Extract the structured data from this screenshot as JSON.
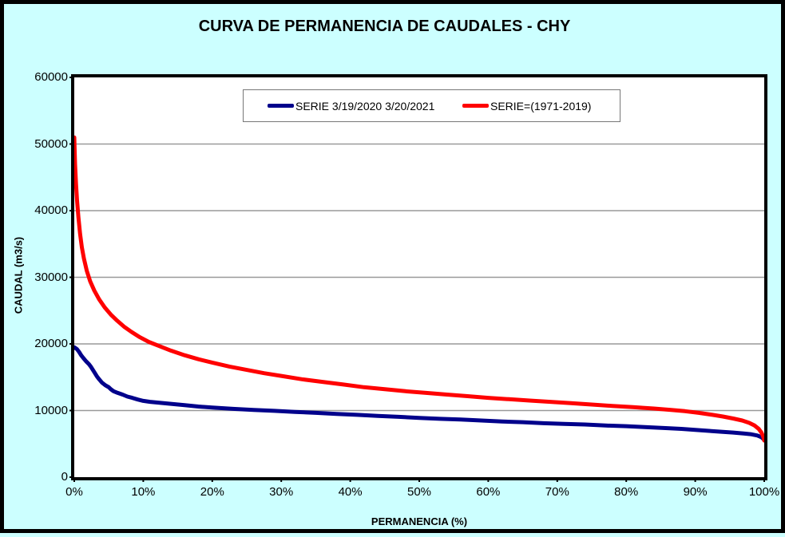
{
  "chart_data": {
    "type": "line",
    "title": "CURVA DE PERMANENCIA DE CAUDALES - CHY",
    "xlabel": "PERMANENCIA (%)",
    "ylabel": "CAUDAL (m3/s)",
    "xlim": [
      0,
      100
    ],
    "ylim": [
      0,
      60000
    ],
    "grid": "horizontal",
    "legend_position": "top-center-inside",
    "background_color": "#CCFFFF",
    "plot_background": "#FFFFFF",
    "gridline_color": "#999999",
    "axis_border_color": "#000000",
    "x_tick_labels": [
      "0%",
      "10%",
      "20%",
      "30%",
      "40%",
      "50%",
      "60%",
      "70%",
      "80%",
      "90%",
      "100%"
    ],
    "x_tick_values": [
      0,
      10,
      20,
      30,
      40,
      50,
      60,
      70,
      80,
      90,
      100
    ],
    "y_tick_labels": [
      "0",
      "10000",
      "20000",
      "30000",
      "40000",
      "50000",
      "60000"
    ],
    "y_tick_values": [
      0,
      10000,
      20000,
      30000,
      40000,
      50000,
      60000
    ],
    "series": [
      {
        "name": "SERIE 3/19/2020 3/20/2021",
        "color": "#00008B",
        "points": [
          [
            0,
            19500
          ],
          [
            0.4,
            19200
          ],
          [
            0.7,
            18800
          ],
          [
            1,
            18300
          ],
          [
            1.3,
            17900
          ],
          [
            1.7,
            17400
          ],
          [
            2.1,
            17000
          ],
          [
            2.4,
            16600
          ],
          [
            2.7,
            16100
          ],
          [
            3,
            15600
          ],
          [
            3.3,
            15100
          ],
          [
            3.6,
            14700
          ],
          [
            4,
            14200
          ],
          [
            4.5,
            13800
          ],
          [
            5,
            13500
          ],
          [
            5.3,
            13200
          ],
          [
            5.7,
            12900
          ],
          [
            6.3,
            12650
          ],
          [
            7,
            12400
          ],
          [
            7.7,
            12100
          ],
          [
            8.4,
            11900
          ],
          [
            9.2,
            11650
          ],
          [
            10,
            11450
          ],
          [
            11,
            11300
          ],
          [
            12.5,
            11150
          ],
          [
            14,
            11000
          ],
          [
            16,
            10800
          ],
          [
            18,
            10600
          ],
          [
            20,
            10450
          ],
          [
            23,
            10250
          ],
          [
            26,
            10100
          ],
          [
            29,
            9950
          ],
          [
            32,
            9800
          ],
          [
            35,
            9650
          ],
          [
            38,
            9500
          ],
          [
            41,
            9350
          ],
          [
            44,
            9200
          ],
          [
            47,
            9050
          ],
          [
            50,
            8900
          ],
          [
            53,
            8750
          ],
          [
            56,
            8650
          ],
          [
            59,
            8500
          ],
          [
            62,
            8350
          ],
          [
            65,
            8250
          ],
          [
            68,
            8100
          ],
          [
            71,
            8000
          ],
          [
            74,
            7900
          ],
          [
            77,
            7750
          ],
          [
            80,
            7650
          ],
          [
            83,
            7500
          ],
          [
            86,
            7350
          ],
          [
            88,
            7250
          ],
          [
            90,
            7100
          ],
          [
            92,
            6950
          ],
          [
            94,
            6800
          ],
          [
            95.5,
            6700
          ],
          [
            97,
            6550
          ],
          [
            98,
            6450
          ],
          [
            99,
            6250
          ],
          [
            99.6,
            6000
          ],
          [
            100,
            5600
          ]
        ]
      },
      {
        "name": "SERIE=(1971-2019)",
        "color": "#FF0000",
        "points": [
          [
            0,
            51000
          ],
          [
            0.12,
            47000
          ],
          [
            0.25,
            44000
          ],
          [
            0.4,
            41500
          ],
          [
            0.6,
            39000
          ],
          [
            0.85,
            36500
          ],
          [
            1.1,
            34500
          ],
          [
            1.4,
            32800
          ],
          [
            1.8,
            31000
          ],
          [
            2.3,
            29400
          ],
          [
            2.9,
            28000
          ],
          [
            3.6,
            26700
          ],
          [
            4.4,
            25500
          ],
          [
            5.3,
            24400
          ],
          [
            6.2,
            23500
          ],
          [
            7.2,
            22600
          ],
          [
            8.3,
            21800
          ],
          [
            9.5,
            21000
          ],
          [
            10.8,
            20300
          ],
          [
            12.5,
            19600
          ],
          [
            14,
            19000
          ],
          [
            16,
            18300
          ],
          [
            18,
            17700
          ],
          [
            20,
            17200
          ],
          [
            22.5,
            16600
          ],
          [
            25,
            16100
          ],
          [
            27.5,
            15600
          ],
          [
            30,
            15200
          ],
          [
            33,
            14700
          ],
          [
            36,
            14300
          ],
          [
            39,
            13900
          ],
          [
            42,
            13500
          ],
          [
            45,
            13200
          ],
          [
            48,
            12900
          ],
          [
            51,
            12650
          ],
          [
            54,
            12400
          ],
          [
            57,
            12150
          ],
          [
            60,
            11900
          ],
          [
            63,
            11700
          ],
          [
            66,
            11500
          ],
          [
            69,
            11300
          ],
          [
            72,
            11100
          ],
          [
            75,
            10900
          ],
          [
            78,
            10700
          ],
          [
            81,
            10500
          ],
          [
            84,
            10300
          ],
          [
            86.5,
            10100
          ],
          [
            88.5,
            9900
          ],
          [
            90.5,
            9650
          ],
          [
            92.5,
            9350
          ],
          [
            94,
            9100
          ],
          [
            95.5,
            8800
          ],
          [
            96.8,
            8500
          ],
          [
            97.8,
            8150
          ],
          [
            98.6,
            7750
          ],
          [
            99.2,
            7250
          ],
          [
            99.6,
            6700
          ],
          [
            99.85,
            6100
          ],
          [
            100,
            5500
          ]
        ]
      }
    ]
  }
}
